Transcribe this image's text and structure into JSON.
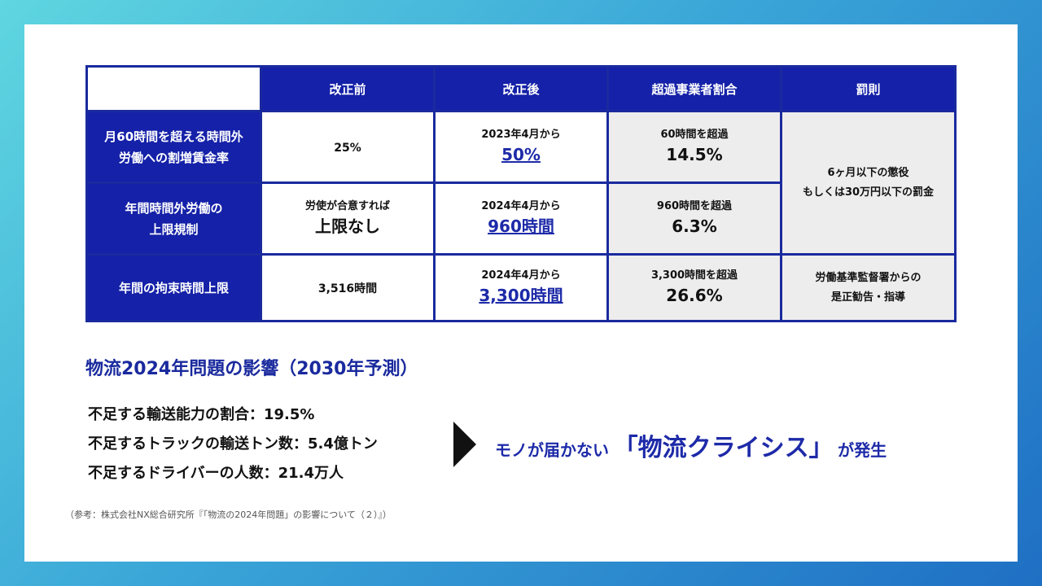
{
  "table": {
    "headers": [
      "改正前",
      "改正後",
      "超過事業者割合",
      "罰則"
    ],
    "rows": [
      {
        "label_lines": [
          "月60時間を超える時間外",
          "労働への割増賃金率"
        ],
        "before": {
          "small": "",
          "big": "25%"
        },
        "after": {
          "small": "2023年4月から",
          "big": "50%"
        },
        "ratio": {
          "small": "60時間を超過",
          "big": "14.5%"
        }
      },
      {
        "label_lines": [
          "年間時間外労働の",
          "上限規制"
        ],
        "before": {
          "small": "労使が合意すれば",
          "big": "上限なし"
        },
        "after": {
          "small": "2024年4月から",
          "big": "960時間"
        },
        "ratio": {
          "small": "960時間を超過",
          "big": "6.3%"
        }
      },
      {
        "label_lines": [
          "年間の拘束時間上限"
        ],
        "before": {
          "small": "",
          "big": "3,516時間"
        },
        "after": {
          "small": "2024年4月から",
          "big": "3,300時間"
        },
        "ratio": {
          "small": "3,300時間を超過",
          "big": "26.6%"
        }
      }
    ],
    "penalty_1_2": [
      "6ヶ月以下の懲役",
      "もしくは30万円以下の罰金"
    ],
    "penalty_3": [
      "労働基準監督署からの",
      "是正勧告・指導"
    ]
  },
  "impact": {
    "title": "物流2024年問題の影響（2030年予測）",
    "bullets": [
      "不足する輸送能力の割合：19.5%",
      "不足するトラックの輸送トン数：5.4億トン",
      "不足するドライバーの人数：21.4万人"
    ],
    "result_pre": "モノが届かない",
    "result_emph": "「物流クライシス」",
    "result_post": "が発生"
  },
  "source": "（参考：株式会社NX総合研究所『「物流の2024年問題」の影響について（２）』）",
  "colors": {
    "header_blue": "#1521a8",
    "border_blue": "#1a2a9e",
    "link_blue": "#1d2aa8",
    "gray_cell": "#ededed"
  },
  "icons": {
    "arrow": "triangle-right-icon"
  }
}
